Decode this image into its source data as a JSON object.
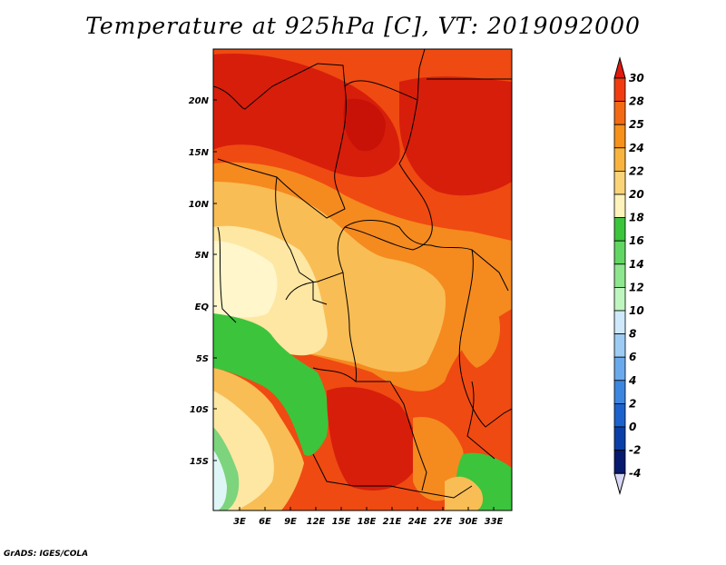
{
  "title": "Temperature at 925hPa [C], VT: 2019092000",
  "credit": "GrADS: IGES/COLA",
  "map": {
    "lat_ticks": [
      "20N",
      "15N",
      "10N",
      "5N",
      "EQ",
      "5S",
      "10S",
      "15S"
    ],
    "lon_ticks": [
      "3E",
      "6E",
      "9E",
      "12E",
      "15E",
      "18E",
      "21E",
      "24E",
      "27E",
      "30E",
      "33E"
    ]
  },
  "colorbar": {
    "labels": [
      "30",
      "28",
      "25",
      "24",
      "22",
      "20",
      "18",
      "16",
      "14",
      "12",
      "10",
      "8",
      "6",
      "4",
      "2",
      "0",
      "-2",
      "-4"
    ],
    "colors": [
      "#e01a0e",
      "#f03c10",
      "#f46a14",
      "#f6911c",
      "#f8b43e",
      "#fbd479",
      "#fdf3bb",
      "#3cc43c",
      "#62d662",
      "#8ee68e",
      "#bff5bf",
      "#cfe9fb",
      "#9dcbf3",
      "#6aaaec",
      "#3c86e0",
      "#1c62cc",
      "#0b3fa8",
      "#061a6e",
      "#d8d8f6"
    ]
  },
  "legend_colors": {
    "hot_red": "#d71e0b",
    "orange_red": "#ef4a12",
    "orange": "#f58a1f",
    "light_orange": "#f9bd55",
    "pale_yellow": "#fde7a2",
    "cream": "#fff6cc",
    "green": "#3cc43c",
    "light_green": "#7cd47c",
    "pale_cyan": "#dff6f6"
  }
}
